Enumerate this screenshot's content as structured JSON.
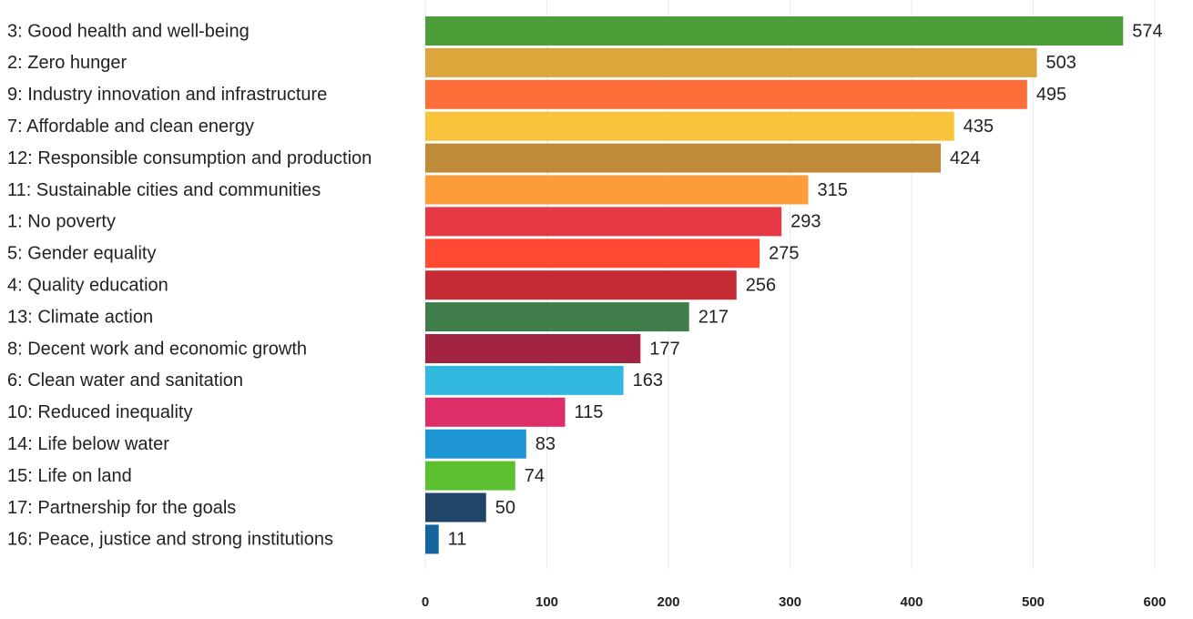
{
  "chart_data": {
    "type": "bar",
    "orientation": "horizontal",
    "categories": [
      "3: Good health and well-being",
      "2: Zero hunger",
      "9: Industry innovation and infrastructure",
      "7: Affordable and clean energy",
      "12: Responsible consumption and production",
      "11: Sustainable cities and communities",
      "1: No poverty",
      "5: Gender equality",
      "4: Quality education",
      "13: Climate action",
      "8: Decent work and economic growth",
      "6: Clean water and sanitation",
      "10: Reduced inequality",
      "14: Life below water",
      "15: Life on land",
      "17: Partnership for the goals",
      "16: Peace, justice and strong institutions"
    ],
    "values": [
      574,
      503,
      495,
      435,
      424,
      315,
      293,
      275,
      256,
      217,
      177,
      163,
      115,
      83,
      74,
      50,
      11
    ],
    "colors": [
      "#4c9f38",
      "#dda63a",
      "#fd6f38",
      "#f9c33b",
      "#bf8b3a",
      "#fd9d3a",
      "#e53a45",
      "#ff4a33",
      "#c52b35",
      "#3f7e4a",
      "#a22442",
      "#33b8e0",
      "#dd2e67",
      "#1e96d6",
      "#5cc030",
      "#1f4568",
      "#11649c"
    ],
    "xlim": [
      0,
      600
    ],
    "xticks": [
      0,
      100,
      200,
      300,
      400,
      500,
      600
    ],
    "grid": true
  }
}
